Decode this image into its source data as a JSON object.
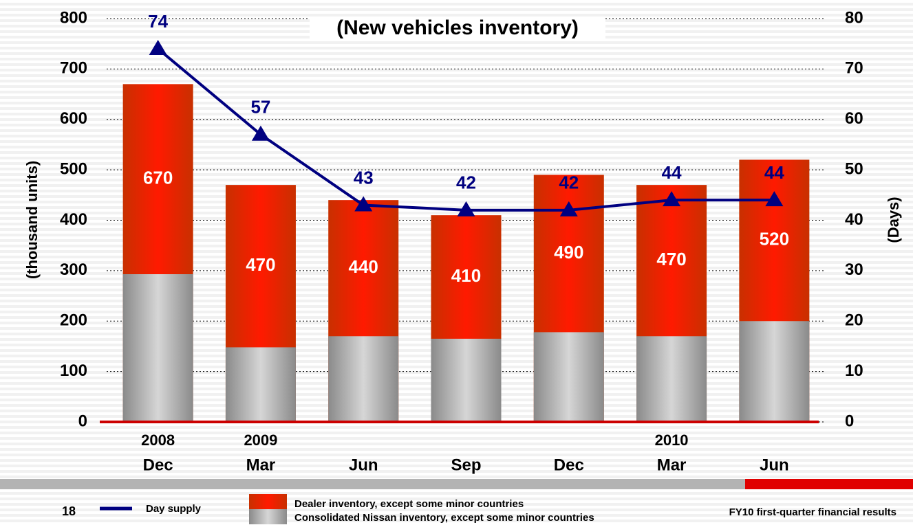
{
  "chart_data": {
    "type": "bar_line",
    "title": "(New vehicles inventory)",
    "categories": [
      "Dec",
      "Mar",
      "Jun",
      "Sep",
      "Dec",
      "Mar",
      "Jun"
    ],
    "years": [
      "2008",
      "2009",
      null,
      null,
      null,
      "2010",
      null
    ],
    "series": [
      {
        "name": "Dealer inventory, except some minor countries",
        "color": "#ff1a00",
        "values": [
          670,
          470,
          440,
          410,
          490,
          470,
          520
        ]
      },
      {
        "name": "Consolidated Nissan inventory, except some minor countries",
        "color": "#a6a6a6",
        "values": [
          293,
          148,
          170,
          165,
          178,
          170,
          200
        ]
      },
      {
        "name": "Day supply",
        "color": "#000080",
        "axis": "y2",
        "values": [
          74,
          57,
          43,
          42,
          42,
          44,
          44
        ]
      }
    ],
    "ylabel": "(thousand units)",
    "y2label": "(Days)",
    "ylim": [
      0,
      800
    ],
    "yticks": [
      0,
      100,
      200,
      300,
      400,
      500,
      600,
      700,
      800
    ],
    "y2lim": [
      0,
      80
    ],
    "y2ticks": [
      0,
      10,
      20,
      30,
      40,
      50,
      60,
      70,
      80
    ],
    "grid": true,
    "page_number": "18",
    "footer": "FY10 first-quarter financial results"
  }
}
